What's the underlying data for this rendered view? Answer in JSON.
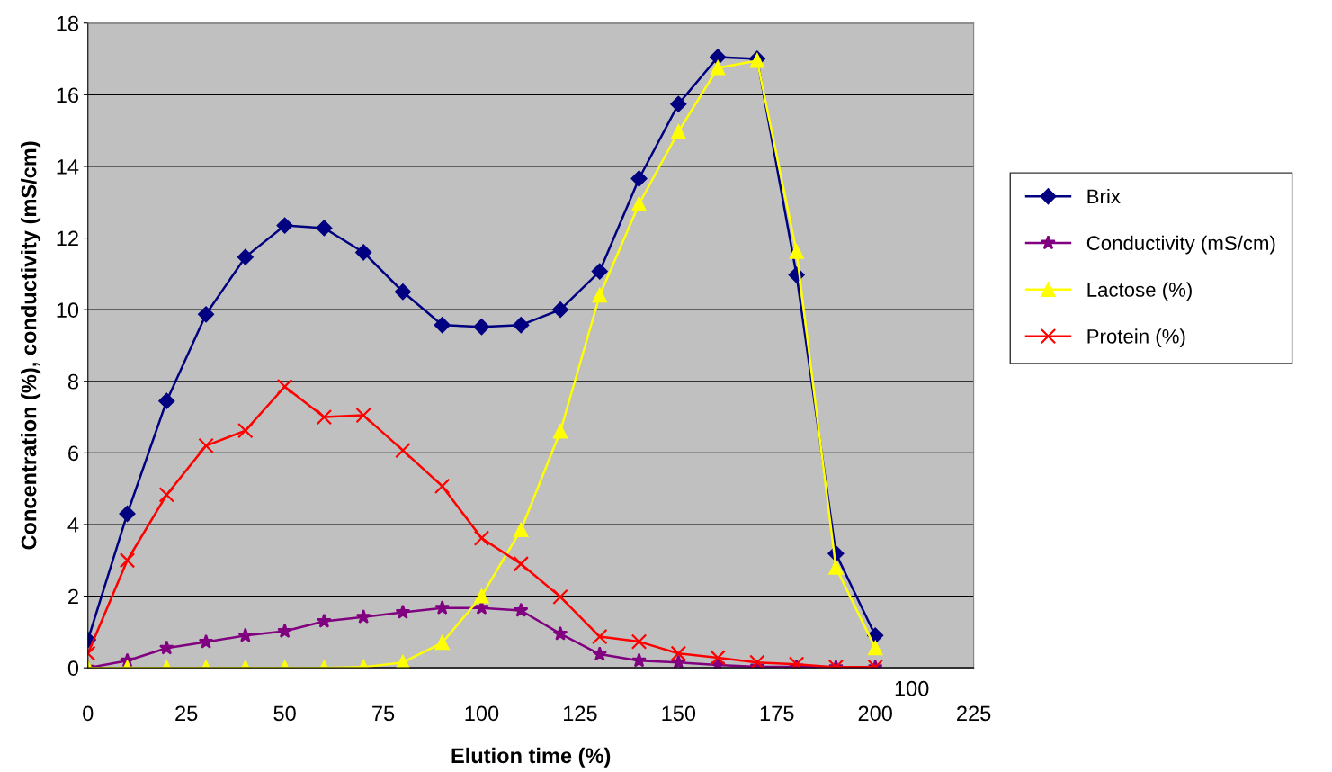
{
  "chart_data": {
    "type": "line",
    "xlabel": "Elution time (%)",
    "ylabel": "Concentration (%), conductivity (mS/cm)",
    "x": [
      0,
      10,
      20,
      30,
      40,
      50,
      60,
      70,
      80,
      90,
      100,
      110,
      120,
      130,
      140,
      150,
      160,
      170,
      180,
      190,
      200
    ],
    "series": [
      {
        "name": "Brix",
        "color": "#000080",
        "marker": "diamond",
        "values": [
          0.78,
          4.3,
          7.45,
          9.87,
          11.47,
          12.35,
          12.28,
          11.6,
          10.5,
          9.57,
          9.52,
          9.57,
          10.0,
          11.07,
          13.66,
          15.74,
          17.05,
          17.0,
          10.97,
          3.19,
          0.9
        ]
      },
      {
        "name": "Conductivity (mS/cm)",
        "color": "#800080",
        "marker": "star",
        "values": [
          0,
          0.2,
          0.55,
          0.72,
          0.9,
          1.02,
          1.3,
          1.42,
          1.55,
          1.67,
          1.67,
          1.6,
          0.95,
          0.38,
          0.2,
          0.15,
          0.08,
          0.03,
          0.03,
          0.01,
          0.01
        ]
      },
      {
        "name": "Lactose (%)",
        "color": "#ffff00",
        "marker": "triangle",
        "values": [
          0,
          0,
          0,
          0,
          0,
          0,
          0,
          0.02,
          0.15,
          0.7,
          2.0,
          3.85,
          6.6,
          10.4,
          12.95,
          14.97,
          16.75,
          16.95,
          11.62,
          2.8,
          0.55
        ]
      },
      {
        "name": "Protein (%)",
        "color": "#ff0000",
        "marker": "cross",
        "values": [
          0.4,
          3.0,
          4.83,
          6.2,
          6.62,
          7.85,
          7.0,
          7.05,
          6.07,
          5.07,
          3.62,
          2.9,
          1.98,
          0.87,
          0.73,
          0.4,
          0.28,
          0.15,
          0.1,
          0.02,
          0.02
        ]
      }
    ],
    "xlim": [
      0,
      225
    ],
    "xticks": [
      0,
      25,
      50,
      75,
      100,
      125,
      150,
      175,
      200,
      225
    ],
    "ylim": [
      0,
      18
    ],
    "yticks": [
      0,
      2,
      4,
      6,
      8,
      10,
      12,
      14,
      16,
      18
    ],
    "grid": "y",
    "legend": "right",
    "annotations": [
      "100"
    ]
  }
}
